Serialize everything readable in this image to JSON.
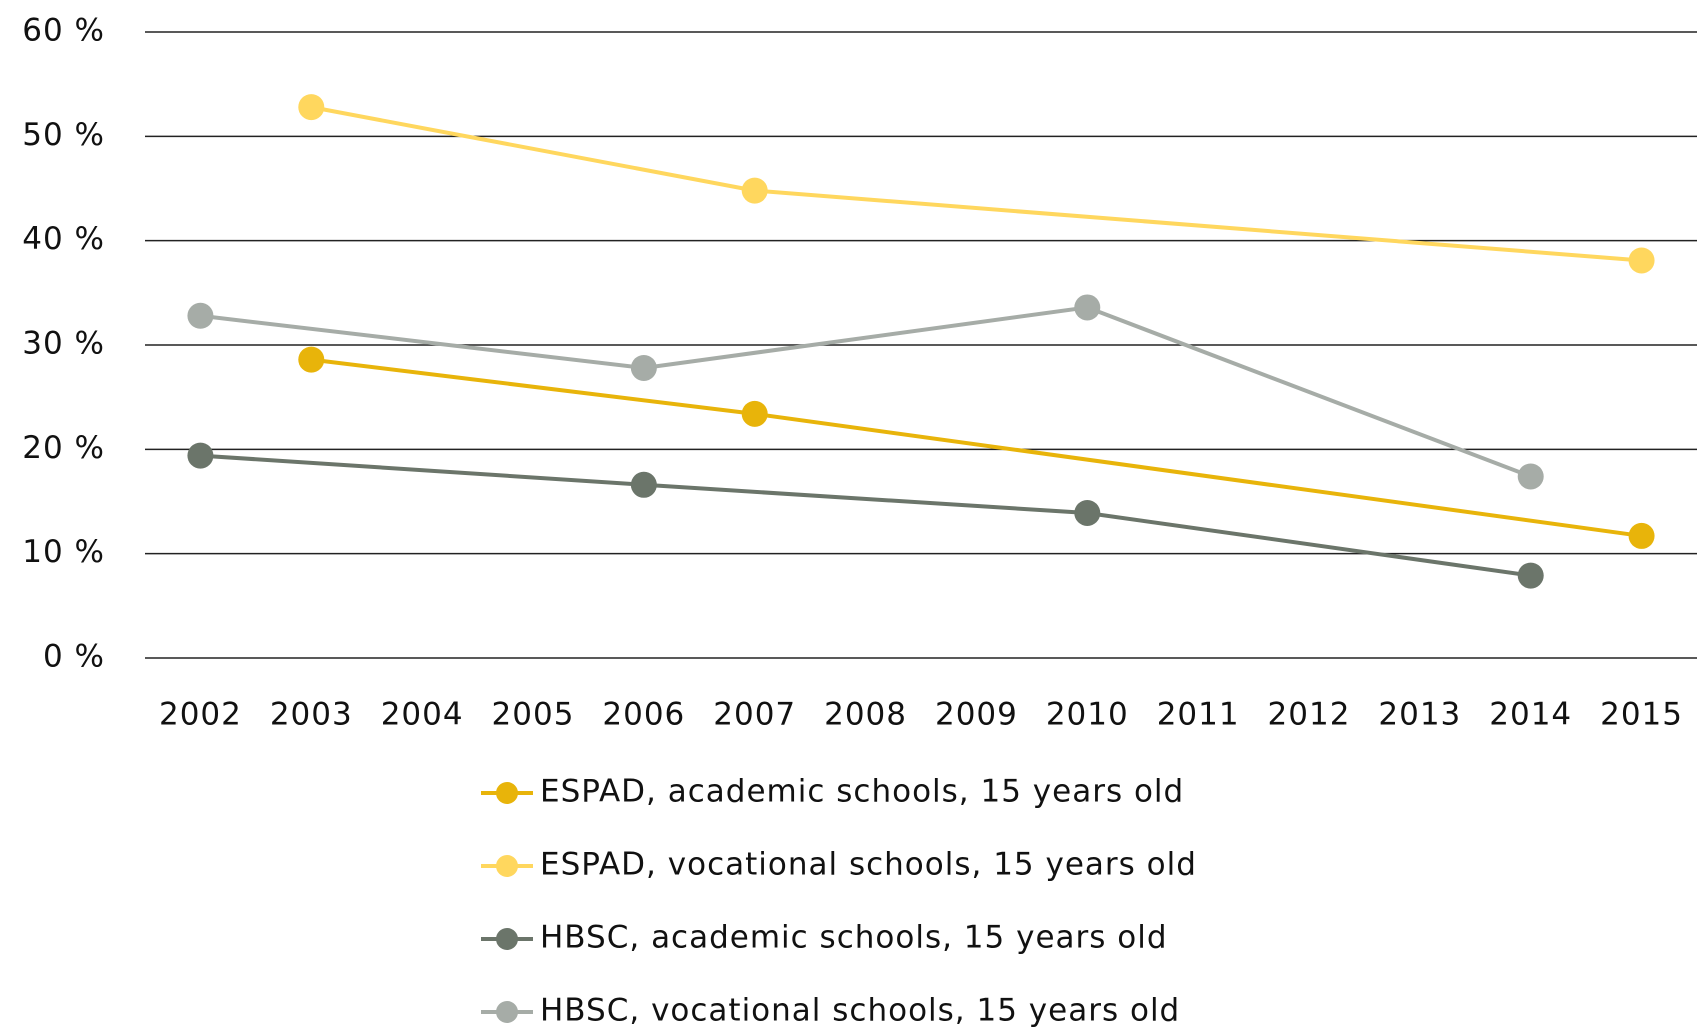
{
  "chart_data": {
    "type": "line",
    "xlim": [
      2001.5,
      2015.5
    ],
    "xticks": [
      2002,
      2003,
      2004,
      2005,
      2006,
      2007,
      2008,
      2009,
      2010,
      2011,
      2012,
      2013,
      2014,
      2015
    ],
    "ylim": [
      0,
      60
    ],
    "yticks": [
      {
        "value": 0,
        "label": "0 %"
      },
      {
        "value": 10,
        "label": "10 %"
      },
      {
        "value": 20,
        "label": "20 %"
      },
      {
        "value": 30,
        "label": "30 %"
      },
      {
        "value": 40,
        "label": "40 %"
      },
      {
        "value": 50,
        "label": "50 %"
      },
      {
        "value": 60,
        "label": "60 %"
      }
    ],
    "grid": true,
    "legend": "bottom",
    "series": [
      {
        "name": "ESPAD, academic schools, 15 years old",
        "color": "#e8b40a",
        "x": [
          2003,
          2007,
          2015
        ],
        "values": [
          28.6,
          23.4,
          11.7
        ]
      },
      {
        "name": "ESPAD, vocational schools, 15 years old",
        "color": "#ffd75e",
        "x": [
          2003,
          2007,
          2015
        ],
        "values": [
          52.8,
          44.8,
          38.1
        ]
      },
      {
        "name": "HBSC, academic schools, 15 years old",
        "color": "#6b756a",
        "x": [
          2002,
          2006,
          2010,
          2014
        ],
        "values": [
          19.4,
          16.6,
          13.9,
          7.9
        ]
      },
      {
        "name": "HBSC, vocational schools, 15 years old",
        "color": "#a6aca7",
        "x": [
          2002,
          2006,
          2010,
          2014
        ],
        "values": [
          32.8,
          27.8,
          33.6,
          17.4
        ]
      }
    ]
  }
}
